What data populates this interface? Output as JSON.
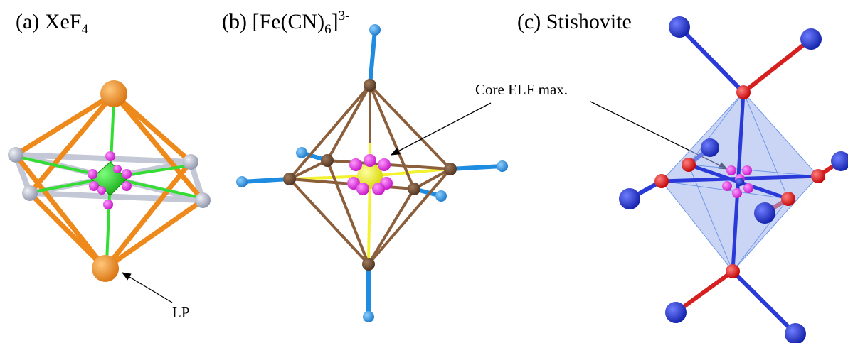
{
  "panels": [
    {
      "label": "(a) XeF",
      "subscript": "4"
    },
    {
      "label": "(b) [Fe(CN)",
      "subscript": "6",
      "after": "]",
      "superscript": "3-"
    },
    {
      "label": "(c) Stishovite"
    }
  ],
  "annotations": [
    "Core ELF max.",
    "LP"
  ]
}
